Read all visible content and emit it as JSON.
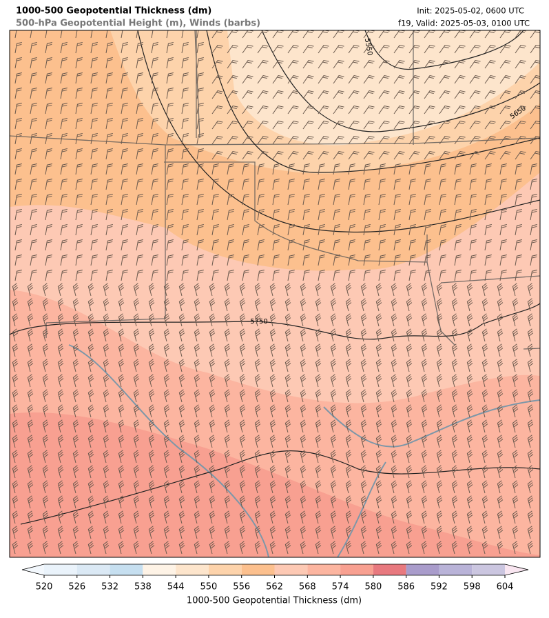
{
  "header": {
    "title": "1000-500 Geopotential Thickness (dm)",
    "subtitle": "500-hPa Geopotential Height (m), Winds (barbs)",
    "init": "Init: 2025-05-02, 0600 UTC",
    "valid": "f19, Valid: 2025-05-03, 0100 UTC"
  },
  "map": {
    "contour_labels": [
      "5550",
      "5650",
      "5750"
    ]
  },
  "colorbar": {
    "label": "1000-500 Geopotential Thickness (dm)",
    "ticks": [
      520,
      526,
      532,
      538,
      544,
      550,
      556,
      562,
      568,
      574,
      580,
      586,
      592,
      598,
      604
    ],
    "colors": [
      "#eaf3fb",
      "#dbe9f5",
      "#c6dff0",
      "#fef3e6",
      "#fde5cc",
      "#fdd3ab",
      "#fcc08e",
      "#fdc9b4",
      "#fcb5a0",
      "#f8a091",
      "#e8797f",
      "#a99ccb",
      "#b9b3d8",
      "#cbc6e0"
    ],
    "extend_colors": [
      "#f3f8fd",
      "#f9e6f1"
    ]
  }
}
